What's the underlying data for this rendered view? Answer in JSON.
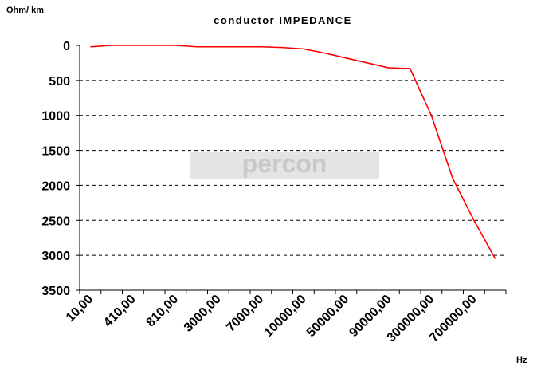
{
  "chart_data": {
    "type": "line",
    "title": "conductor IMPEDANCE",
    "y_label": "Ohm/ km",
    "x_label": "Hz",
    "watermark": "percon",
    "categories": [
      "10,00",
      null,
      "410,00",
      null,
      "810,00",
      null,
      "3000,00",
      null,
      "7000,00",
      null,
      "10000,00",
      null,
      "50000,00",
      null,
      "90000,00",
      null,
      "300000,00",
      null,
      "700000,00",
      null
    ],
    "series": [
      {
        "name": "impedance",
        "color": "#ff0000",
        "values": [
          20,
          0,
          0,
          0,
          0,
          20,
          20,
          20,
          20,
          30,
          50,
          110,
          180,
          250,
          320,
          330,
          1000,
          1900,
          2500,
          3050
        ]
      }
    ],
    "ylim": [
      0,
      3500
    ],
    "y_inverted": true,
    "yticks": [
      0,
      500,
      1000,
      1500,
      2000,
      2500,
      3000,
      3500
    ],
    "grid": true
  }
}
